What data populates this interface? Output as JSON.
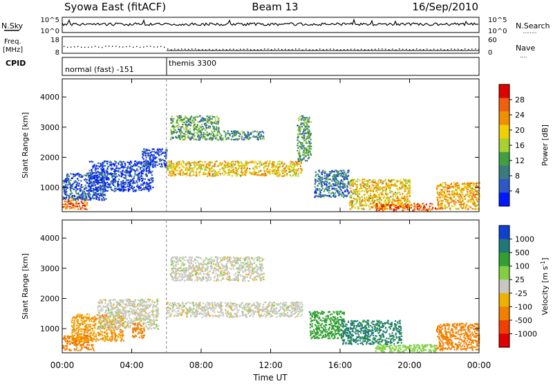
{
  "header": {
    "station": "Syowa East (fitACF)",
    "beam": "Beam 13",
    "date": "16/Sep/2010"
  },
  "strips": {
    "nsky_label": "N.Sky",
    "nsearch_label": "N.Search",
    "nsearch_legend_marker": "........",
    "noise_ticks": [
      "10^5",
      "10^0"
    ],
    "freq_label": "Freq.",
    "freq_unit": "[MHz]",
    "freq_ticks": [
      "18",
      "8"
    ],
    "nave_label": "Nave",
    "nave_legend_marker": "....",
    "nave_ticks": [
      "60",
      "0"
    ],
    "cpid_label": "CPID",
    "cpid_segments": [
      {
        "label": "normal (fast) -151",
        "start_hour": 0
      },
      {
        "label": "themis 3300",
        "start_hour": 6
      }
    ]
  },
  "chart_data": [
    {
      "type": "heatmap",
      "quantity": "Power",
      "ylabel": "Slant Range [km]",
      "xlabel": "Time UT",
      "xlim": [
        0,
        24
      ],
      "ylim": [
        200,
        4600
      ],
      "yticks": [
        1000,
        2000,
        3000,
        4000
      ],
      "xticks": [
        0,
        4,
        8,
        12,
        16,
        20,
        24
      ],
      "xtick_labels": [
        "00:00",
        "04:00",
        "08:00",
        "12:00",
        "16:00",
        "20:00",
        "00:00"
      ],
      "colorbar": {
        "label": "Power [dB]",
        "range": [
          0,
          32
        ],
        "ticks": [
          4,
          8,
          12,
          16,
          20,
          24,
          28
        ],
        "tick_labels": [
          "4",
          "8",
          "12",
          "16",
          "20",
          "24",
          "28"
        ],
        "colors": [
          "#0018ff",
          "#2e58c8",
          "#3a7c7e",
          "#40a040",
          "#a8d030",
          "#f0d000",
          "#f09000",
          "#f06010",
          "#e00000"
        ]
      },
      "regions": [
        {
          "t": [
            0.0,
            1.4
          ],
          "r": [
            300,
            700
          ],
          "value": 26
        },
        {
          "t": [
            0.0,
            2.5
          ],
          "r": [
            600,
            1500
          ],
          "value": 6
        },
        {
          "t": [
            1.5,
            5.2
          ],
          "r": [
            900,
            1900
          ],
          "value": 4
        },
        {
          "t": [
            4.5,
            6.0
          ],
          "r": [
            1700,
            2300
          ],
          "value": 5
        },
        {
          "t": [
            6.0,
            13.8
          ],
          "r": [
            1400,
            1900
          ],
          "value": 20
        },
        {
          "t": [
            6.2,
            9.0
          ],
          "r": [
            2600,
            3400
          ],
          "value": 12
        },
        {
          "t": [
            9.0,
            11.6
          ],
          "r": [
            2600,
            2900
          ],
          "value": 10
        },
        {
          "t": [
            13.5,
            14.3
          ],
          "r": [
            1900,
            3400
          ],
          "value": 12
        },
        {
          "t": [
            14.5,
            16.5
          ],
          "r": [
            700,
            1600
          ],
          "value": 8
        },
        {
          "t": [
            16.5,
            20.0
          ],
          "r": [
            300,
            1300
          ],
          "value": 20
        },
        {
          "t": [
            18.0,
            21.5
          ],
          "r": [
            250,
            500
          ],
          "value": 26
        },
        {
          "t": [
            21.5,
            24.0
          ],
          "r": [
            300,
            1200
          ],
          "value": 22
        }
      ]
    },
    {
      "type": "heatmap",
      "quantity": "Velocity",
      "ylabel": "Slant Range [km]",
      "xlabel": "Time UT",
      "xlim": [
        0,
        24
      ],
      "ylim": [
        200,
        4600
      ],
      "yticks": [
        1000,
        2000,
        3000,
        4000
      ],
      "xticks": [
        0,
        4,
        8,
        12,
        16,
        20,
        24
      ],
      "xtick_labels": [
        "00:00",
        "04:00",
        "08:00",
        "12:00",
        "16:00",
        "20:00",
        "00:00"
      ],
      "colorbar": {
        "label": "Velocity [m s",
        "label_exponent": "-1",
        "label_close": "]",
        "ticks": [
          1000,
          500,
          100,
          25,
          -25,
          -100,
          -500,
          -1000
        ],
        "tick_labels": [
          "1000",
          "500",
          "100",
          "25",
          "-25",
          "-100",
          "-500",
          "-1000"
        ],
        "colors": [
          "#1040d0",
          "#207878",
          "#30a030",
          "#80d040",
          "#c8c8c0",
          "#f0b000",
          "#f08000",
          "#f04000",
          "#e00000"
        ]
      },
      "regions": [
        {
          "t": [
            0.0,
            1.8
          ],
          "r": [
            300,
            800
          ],
          "value": -400
        },
        {
          "t": [
            0.5,
            3.5
          ],
          "r": [
            600,
            1500
          ],
          "value": -100
        },
        {
          "t": [
            2.0,
            5.5
          ],
          "r": [
            1000,
            2000
          ],
          "value": 0
        },
        {
          "t": [
            4.0,
            4.7
          ],
          "r": [
            700,
            1200
          ],
          "value": -300
        },
        {
          "t": [
            6.0,
            13.8
          ],
          "r": [
            1400,
            1900
          ],
          "value": 0
        },
        {
          "t": [
            6.2,
            11.6
          ],
          "r": [
            2600,
            3400
          ],
          "value": 0
        },
        {
          "t": [
            14.2,
            16.2
          ],
          "r": [
            700,
            1600
          ],
          "value": 150
        },
        {
          "t": [
            16.0,
            19.5
          ],
          "r": [
            500,
            1300
          ],
          "value": 600
        },
        {
          "t": [
            18.0,
            21.5
          ],
          "r": [
            250,
            500
          ],
          "value": 60
        },
        {
          "t": [
            21.5,
            24.0
          ],
          "r": [
            300,
            1200
          ],
          "value": -200
        }
      ]
    }
  ]
}
